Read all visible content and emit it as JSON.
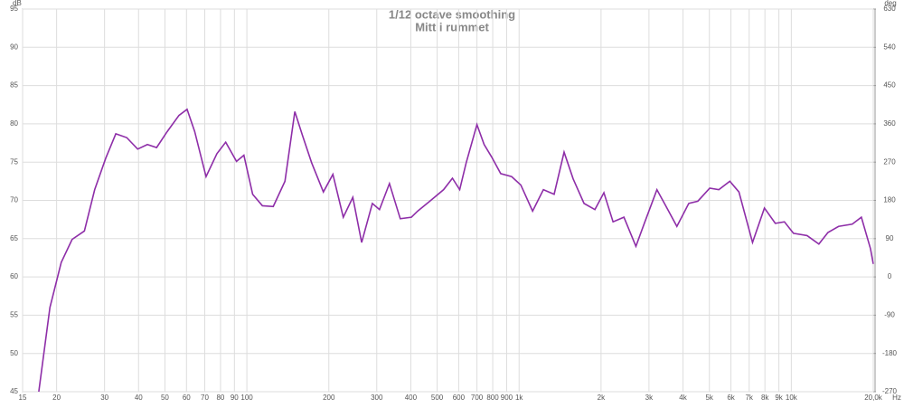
{
  "chart_data": {
    "type": "line",
    "title": "1/12 octave smoothing",
    "subtitle": "Mitt i rummet",
    "y_label": "dB",
    "y2_label": "deg",
    "x_label": "Hz",
    "x_scale": "log",
    "grid": true,
    "xlim": [
      15,
      20000
    ],
    "ylim": [
      45,
      95
    ],
    "y2lim": [
      -270,
      630
    ],
    "xticks": [
      15,
      20,
      30,
      40,
      50,
      60,
      70,
      80,
      90,
      100,
      200,
      300,
      400,
      500,
      600,
      700,
      800,
      900,
      {
        "value": 1000,
        "label": "1k"
      },
      {
        "value": 2000,
        "label": "2k"
      },
      {
        "value": 3000,
        "label": "3k"
      },
      {
        "value": 4000,
        "label": "4k"
      },
      {
        "value": 5000,
        "label": "5k"
      },
      {
        "value": 6000,
        "label": "6k"
      },
      {
        "value": 7000,
        "label": "7k"
      },
      {
        "value": 8000,
        "label": "8k"
      },
      {
        "value": 9000,
        "label": "9k"
      },
      {
        "value": 10000,
        "label": "10k"
      },
      {
        "value": 20000,
        "label": "20,0k"
      }
    ],
    "yticks": [
      45,
      50,
      55,
      60,
      65,
      70,
      75,
      80,
      85,
      90,
      95
    ],
    "y2ticks": [
      -270,
      -180,
      -90,
      0,
      90,
      180,
      270,
      360,
      450,
      540,
      630
    ],
    "x": [
      17.2,
      18.9,
      20.8,
      22.8,
      25.3,
      27.6,
      30.3,
      33,
      36.2,
      39.7,
      43.1,
      46.6,
      51,
      56.3,
      60.3,
      64.3,
      70.8,
      77.6,
      83.6,
      91.6,
      97.5,
      105,
      114,
      125,
      138,
      150,
      160,
      173,
      191,
      207,
      226,
      245,
      264,
      289,
      307,
      334,
      366,
      402,
      424,
      470,
      528,
      569,
      605,
      639,
      700,
      744,
      792,
      856,
      939,
      1015,
      1121,
      1228,
      1345,
      1463,
      1580,
      1732,
      1899,
      2049,
      2214,
      2427,
      2686,
      2898,
      3208,
      3517,
      3798,
      4200,
      4536,
      5016,
      5417,
      5944,
      6420,
      7203,
      7966,
      8733,
      9431,
      10185,
      11425,
      12624,
      13631,
      14916,
      16743,
      18085,
      19532,
      20000
    ],
    "series": [
      {
        "name": "Mitt i rummet",
        "color": "#8e2ea8",
        "values": [
          45,
          56,
          61.9,
          64.9,
          66,
          71.4,
          75.5,
          78.7,
          78.2,
          76.7,
          77.3,
          76.9,
          79,
          81.1,
          81.9,
          79,
          73.1,
          76.1,
          77.6,
          75.1,
          75.9,
          70.8,
          69.3,
          69.2,
          72.5,
          81.6,
          78.5,
          74.9,
          71.1,
          73.4,
          67.8,
          70.4,
          64.5,
          69.6,
          68.8,
          72.2,
          67.6,
          67.8,
          68.6,
          69.9,
          71.4,
          72.9,
          71.4,
          74.9,
          79.9,
          77.3,
          75.7,
          73.5,
          73.1,
          72,
          68.6,
          71.4,
          70.8,
          76.3,
          72.8,
          69.6,
          68.8,
          71,
          67.2,
          67.8,
          64,
          67.2,
          71.4,
          68.8,
          66.6,
          69.6,
          69.9,
          71.6,
          71.4,
          72.5,
          71.1,
          64.5,
          69,
          67,
          67.2,
          65.7,
          65.4,
          64.3,
          65.8,
          66.6,
          66.9,
          67.8,
          63.7,
          61.7
        ]
      }
    ]
  }
}
